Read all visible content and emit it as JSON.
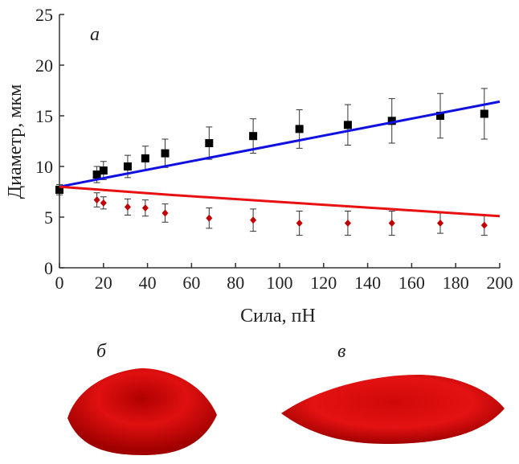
{
  "chart_data": {
    "type": "scatter",
    "x_label": "Сила, пН",
    "y_label": "Диаметр, мкм",
    "annotations": [
      "а",
      "б",
      "в"
    ],
    "xlim": [
      0,
      200
    ],
    "ylim": [
      0,
      25
    ],
    "xticks": [
      0,
      20,
      40,
      60,
      80,
      100,
      120,
      140,
      160,
      180,
      200
    ],
    "yticks": [
      0,
      5,
      10,
      15,
      20,
      25
    ],
    "series": [
      {
        "color": "#000000",
        "marker": "square",
        "x": [
          0,
          17,
          20,
          31,
          39,
          48,
          68,
          88,
          109,
          131,
          151,
          173,
          193
        ],
        "values": [
          7.7,
          9.2,
          9.6,
          10.0,
          10.8,
          11.3,
          12.3,
          13.0,
          13.7,
          14.1,
          14.5,
          15.0,
          15.2
        ],
        "errors": [
          0.5,
          0.8,
          0.9,
          1.1,
          1.2,
          1.4,
          1.6,
          1.7,
          1.9,
          2.0,
          2.2,
          2.2,
          2.5
        ]
      },
      {
        "color": "#c00000",
        "marker": "diamond",
        "x": [
          17,
          20,
          31,
          39,
          48,
          68,
          88,
          109,
          131,
          151,
          173,
          193
        ],
        "values": [
          6.7,
          6.4,
          6.0,
          5.9,
          5.4,
          4.9,
          4.7,
          4.4,
          4.4,
          4.4,
          4.4,
          4.2
        ],
        "errors": [
          0.7,
          0.6,
          0.8,
          0.8,
          0.9,
          1.0,
          1.1,
          1.2,
          1.2,
          1.2,
          1.0,
          1.0
        ]
      },
      {
        "type": "line",
        "color": "#1010e0",
        "x": [
          0,
          200
        ],
        "values": [
          8.0,
          16.4
        ]
      },
      {
        "type": "line",
        "color": "#e81010",
        "x": [
          0,
          50,
          100,
          150,
          200
        ],
        "values": [
          8.0,
          7.2,
          6.5,
          5.8,
          5.1
        ]
      }
    ]
  }
}
